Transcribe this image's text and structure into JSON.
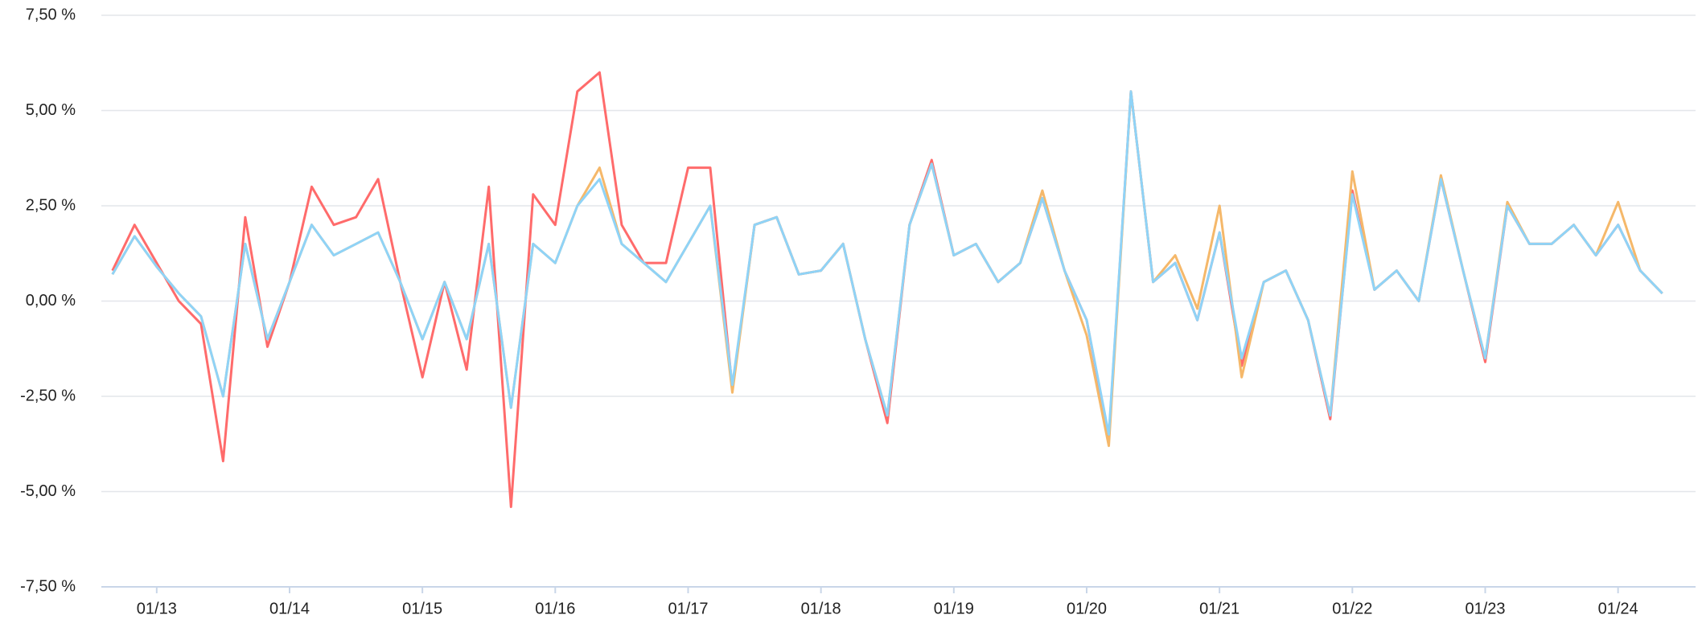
{
  "chart_data": {
    "type": "line",
    "x": [
      "2012-09",
      "2012-11",
      "2013-01",
      "2013-03",
      "2013-05",
      "2013-07",
      "2013-09",
      "2013-11",
      "2014-01",
      "2014-03",
      "2014-05",
      "2014-07",
      "2014-09",
      "2014-11",
      "2015-01",
      "2015-03",
      "2015-05",
      "2015-07",
      "2015-09",
      "2015-11",
      "2016-01",
      "2016-03",
      "2016-05",
      "2016-07",
      "2016-09",
      "2016-11",
      "2017-01",
      "2017-03",
      "2017-05",
      "2017-07",
      "2017-09",
      "2017-11",
      "2018-01",
      "2018-03",
      "2018-05",
      "2018-07",
      "2018-09",
      "2018-11",
      "2019-01",
      "2019-03",
      "2019-05",
      "2019-07",
      "2019-09",
      "2019-11",
      "2020-01",
      "2020-03",
      "2020-05",
      "2020-07",
      "2020-09",
      "2020-11",
      "2021-01",
      "2021-03",
      "2021-05",
      "2021-07",
      "2021-09",
      "2021-11",
      "2022-01",
      "2022-03",
      "2022-05",
      "2022-07",
      "2022-09",
      "2022-11",
      "2023-01",
      "2023-03",
      "2023-05",
      "2023-07",
      "2023-09",
      "2023-11",
      "2024-01",
      "2024-03",
      "2024-05"
    ],
    "series": [
      {
        "color": "#ff6b6b",
        "values": [
          0.8,
          2.0,
          1.0,
          0.0,
          -0.6,
          -4.2,
          2.2,
          -1.2,
          0.5,
          3.0,
          2.0,
          2.2,
          3.2,
          0.5,
          -2.0,
          0.5,
          -1.8,
          3.0,
          -5.4,
          2.8,
          2.0,
          5.5,
          6.0,
          2.0,
          1.0,
          1.0,
          3.5,
          3.5,
          -2.3,
          2.0,
          2.2,
          0.7,
          0.8,
          1.5,
          -1.0,
          -3.2,
          2.0,
          3.7,
          1.2,
          1.5,
          0.5,
          1.0,
          2.7,
          0.8,
          -0.5,
          -3.6,
          5.5,
          0.5,
          1.0,
          -0.5,
          1.8,
          -1.7,
          0.5,
          0.8,
          -0.5,
          -3.1,
          2.9,
          0.3,
          0.8,
          0.0,
          3.2,
          0.8,
          -1.6,
          2.5,
          1.5,
          1.5,
          2.0,
          1.2,
          2.0,
          0.8,
          0.2
        ]
      },
      {
        "color": "#f5b86a",
        "values": [
          0.7,
          1.7,
          0.9,
          0.2,
          -0.4,
          -2.5,
          1.5,
          -1.0,
          0.5,
          2.0,
          1.2,
          1.5,
          1.8,
          0.5,
          -1.0,
          0.5,
          -1.0,
          1.5,
          -2.8,
          1.5,
          1.0,
          2.5,
          3.5,
          1.5,
          1.0,
          0.5,
          1.5,
          2.5,
          -2.4,
          2.0,
          2.2,
          0.7,
          0.8,
          1.5,
          -1.0,
          -3.0,
          2.0,
          3.6,
          1.2,
          1.5,
          0.5,
          1.0,
          2.9,
          0.8,
          -0.9,
          -3.8,
          5.5,
          0.5,
          1.2,
          -0.2,
          2.5,
          -2.0,
          0.5,
          0.8,
          -0.5,
          -3.0,
          3.4,
          0.3,
          0.8,
          0.0,
          3.3,
          0.8,
          -1.5,
          2.6,
          1.5,
          1.5,
          2.0,
          1.2,
          2.6,
          0.8,
          0.2
        ]
      },
      {
        "color": "#8fd3f7",
        "values": [
          0.7,
          1.7,
          0.9,
          0.2,
          -0.4,
          -2.5,
          1.5,
          -1.0,
          0.5,
          2.0,
          1.2,
          1.5,
          1.8,
          0.5,
          -1.0,
          0.5,
          -1.0,
          1.5,
          -2.8,
          1.5,
          1.0,
          2.5,
          3.2,
          1.5,
          1.0,
          0.5,
          1.5,
          2.5,
          -2.2,
          2.0,
          2.2,
          0.7,
          0.8,
          1.5,
          -1.0,
          -3.0,
          2.0,
          3.6,
          1.2,
          1.5,
          0.5,
          1.0,
          2.7,
          0.8,
          -0.5,
          -3.5,
          5.5,
          0.5,
          1.0,
          -0.5,
          1.8,
          -1.5,
          0.5,
          0.8,
          -0.5,
          -3.0,
          2.8,
          0.3,
          0.8,
          0.0,
          3.2,
          0.8,
          -1.5,
          2.5,
          1.5,
          1.5,
          2.0,
          1.2,
          2.0,
          0.8,
          0.2
        ]
      }
    ],
    "xlim": [
      "2012-08",
      "2024-08"
    ],
    "xticks": [
      {
        "value": "2013-01",
        "label": "01/13"
      },
      {
        "value": "2014-01",
        "label": "01/14"
      },
      {
        "value": "2015-01",
        "label": "01/15"
      },
      {
        "value": "2016-01",
        "label": "01/16"
      },
      {
        "value": "2017-01",
        "label": "01/17"
      },
      {
        "value": "2018-01",
        "label": "01/18"
      },
      {
        "value": "2019-01",
        "label": "01/19"
      },
      {
        "value": "2020-01",
        "label": "01/20"
      },
      {
        "value": "2021-01",
        "label": "01/21"
      },
      {
        "value": "2022-01",
        "label": "01/22"
      },
      {
        "value": "2023-01",
        "label": "01/23"
      },
      {
        "value": "2024-01",
        "label": "01/24"
      }
    ],
    "ylim": [
      -7.5,
      7.5
    ],
    "yticks": [
      {
        "value": 7.5,
        "label": "7,50 %"
      },
      {
        "value": 5,
        "label": "5,00 %"
      },
      {
        "value": 2.5,
        "label": "2,50 %"
      },
      {
        "value": 0,
        "label": "0,00 %"
      },
      {
        "value": -2.5,
        "label": "-2,50 %"
      },
      {
        "value": -5,
        "label": "-5,00 %"
      },
      {
        "value": -7.5,
        "label": "-7,50 %"
      }
    ],
    "grid": true
  }
}
